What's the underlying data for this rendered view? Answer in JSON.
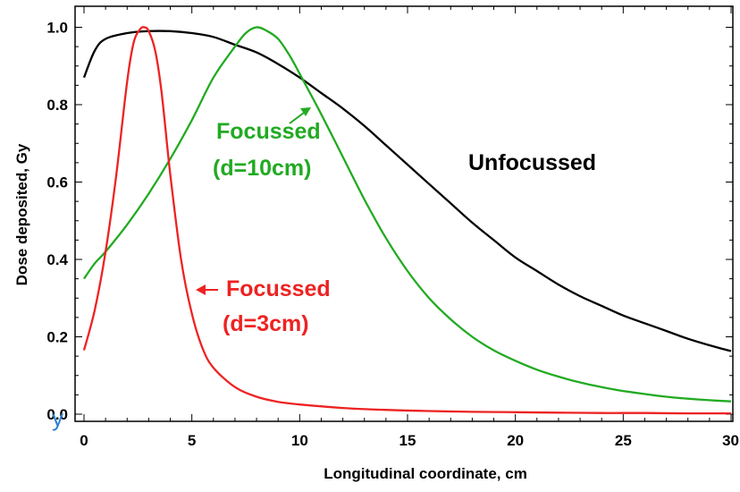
{
  "chart_data": {
    "type": "line",
    "title": "",
    "xlabel": "Longitudinal coordinate, cm",
    "ylabel": "Dose deposited, Gy",
    "xlim": [
      0,
      30
    ],
    "ylim": [
      0,
      1.05
    ],
    "xticks": [
      0,
      5,
      10,
      15,
      20,
      25,
      30
    ],
    "xtick_labels": [
      "0",
      "5",
      "10",
      "15",
      "20",
      "25",
      "30"
    ],
    "yticks": [
      0,
      0.2,
      0.4,
      0.6,
      0.8,
      1.0
    ],
    "ytick_labels": [
      "0.0",
      "0.2",
      "0.4",
      "0.6",
      "0.8",
      "1.0"
    ],
    "grid": false,
    "series": [
      {
        "name": "Unfocussed",
        "color": "#000000",
        "x": [
          0,
          0.5,
          1,
          2,
          3,
          4,
          5,
          6,
          7,
          8,
          9,
          10,
          11,
          12,
          13,
          14,
          15,
          16,
          17,
          18,
          19,
          20,
          21,
          22,
          23,
          24,
          25,
          26,
          27,
          28,
          29,
          30
        ],
        "y": [
          0.87,
          0.94,
          0.97,
          0.985,
          0.99,
          0.99,
          0.985,
          0.975,
          0.955,
          0.935,
          0.905,
          0.87,
          0.83,
          0.79,
          0.745,
          0.695,
          0.645,
          0.595,
          0.545,
          0.495,
          0.45,
          0.405,
          0.37,
          0.335,
          0.305,
          0.28,
          0.255,
          0.235,
          0.215,
          0.195,
          0.178,
          0.163
        ]
      },
      {
        "name": "Focussed (d=10cm)",
        "color": "#22aa22",
        "x": [
          0,
          0.5,
          1,
          2,
          3,
          4,
          5,
          6,
          7,
          7.5,
          8,
          8.5,
          9,
          9.5,
          10,
          11,
          12,
          13,
          14,
          15,
          16,
          17,
          18,
          19,
          20,
          21,
          22,
          23,
          24,
          25,
          26,
          27,
          28,
          29,
          30
        ],
        "y": [
          0.35,
          0.39,
          0.42,
          0.49,
          0.57,
          0.66,
          0.76,
          0.87,
          0.95,
          0.985,
          1.0,
          0.99,
          0.97,
          0.93,
          0.88,
          0.775,
          0.665,
          0.555,
          0.455,
          0.37,
          0.3,
          0.245,
          0.2,
          0.165,
          0.138,
          0.115,
          0.097,
          0.082,
          0.07,
          0.06,
          0.052,
          0.045,
          0.04,
          0.036,
          0.033
        ]
      },
      {
        "name": "Focussed (d=3cm)",
        "color": "#ee2222",
        "x": [
          0,
          0.5,
          1,
          1.5,
          2,
          2.3,
          2.6,
          2.8,
          3,
          3.3,
          3.6,
          4,
          4.5,
          5,
          5.5,
          6,
          7,
          8,
          9,
          10,
          12,
          14,
          16,
          18,
          20,
          22,
          24,
          26,
          28,
          30
        ],
        "y": [
          0.165,
          0.27,
          0.42,
          0.62,
          0.86,
          0.96,
          0.995,
          1.0,
          0.99,
          0.94,
          0.83,
          0.62,
          0.4,
          0.26,
          0.17,
          0.12,
          0.07,
          0.045,
          0.032,
          0.025,
          0.016,
          0.011,
          0.008,
          0.006,
          0.005,
          0.004,
          0.003,
          0.003,
          0.002,
          0.002
        ]
      }
    ],
    "annotations": [
      {
        "text_line1": "Focussed",
        "text_line2": "(d=10cm)",
        "color": "#22aa22"
      },
      {
        "text_line1": "Unfocussed",
        "color": "#000000"
      },
      {
        "text_line1": "Focussed",
        "text_line2": "(d=3cm)",
        "color": "#ee2222"
      }
    ]
  },
  "edge_fragment": "y"
}
